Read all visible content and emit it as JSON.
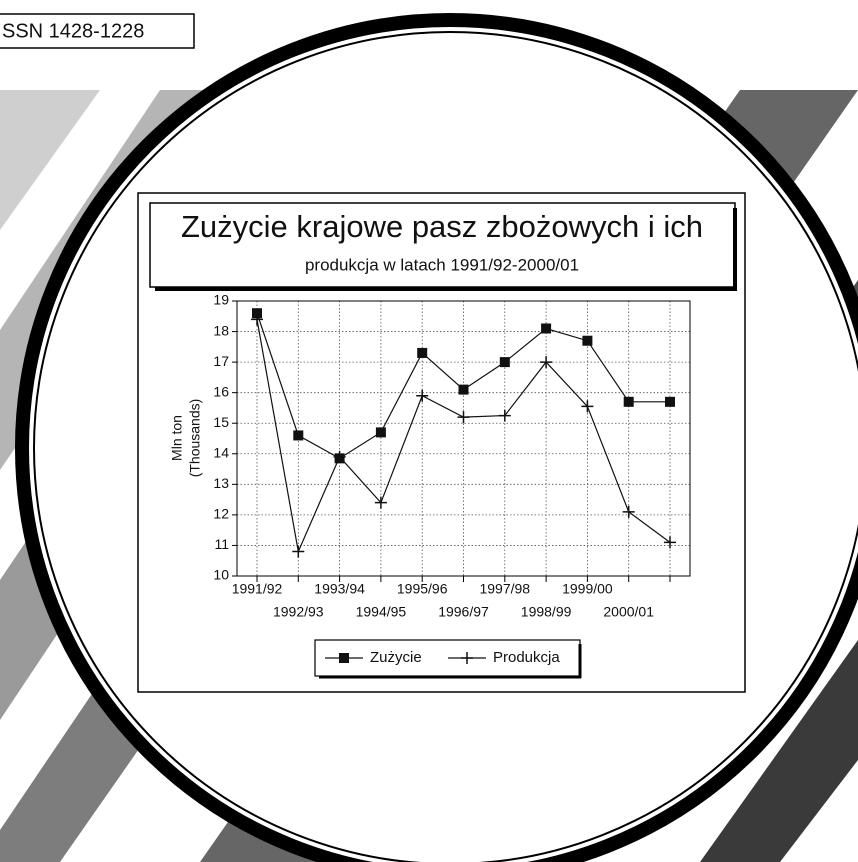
{
  "header": {
    "issn": "SSN 1428-1228"
  },
  "chart_data": {
    "type": "line",
    "title": "Zużycie  krajowe  pasz zbożowych i ich",
    "subtitle": "produkcja w latach 1991/92-2000/01",
    "y_label": [
      "Mln ton",
      "(Thousands)"
    ],
    "categories": [
      "1991/92",
      "1992/93",
      "1993/94",
      "1994/95",
      "1995/96",
      "1996/97",
      "1997/98",
      "1998/99",
      "1999/00",
      "2000/01",
      null
    ],
    "series": [
      {
        "name": "Zużycie",
        "color": "#111111",
        "marker": "square",
        "values": [
          18.6,
          14.6,
          13.85,
          14.7,
          17.3,
          16.1,
          17.0,
          18.1,
          17.7,
          15.7,
          15.7
        ]
      },
      {
        "name": "Produkcja",
        "color": "#111111",
        "marker": "plus",
        "values": [
          18.4,
          10.8,
          13.9,
          12.4,
          15.9,
          15.2,
          15.25,
          17.0,
          15.55,
          12.1,
          11.1
        ]
      }
    ],
    "ylim": [
      10,
      19
    ],
    "yticks": [
      10,
      11,
      12,
      13,
      14,
      15,
      16,
      17,
      18,
      19
    ],
    "grid": true,
    "legend": "bottom"
  }
}
